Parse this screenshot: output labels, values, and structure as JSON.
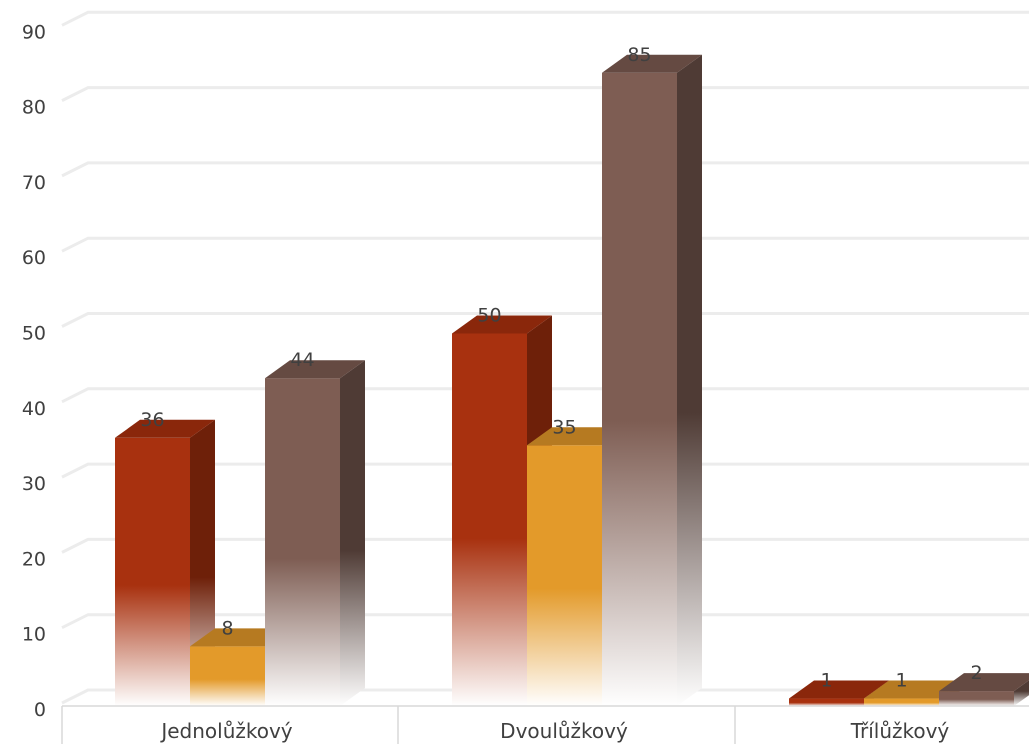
{
  "chart_data": {
    "type": "bar",
    "title": "",
    "xlabel": "",
    "ylabel": "",
    "categories": [
      "Jednolůžkový",
      "Dvoulůžkový",
      "Třílůžkový"
    ],
    "series": [
      {
        "values": [
          36,
          50,
          1
        ],
        "color": "#a8310f",
        "side_color": "#6e2009",
        "top_color": "#8a270b"
      },
      {
        "values": [
          8,
          35,
          1
        ],
        "color": "#e39a2a",
        "side_color": "#9c6a1d",
        "top_color": "#b67a21"
      },
      {
        "values": [
          44,
          85,
          2
        ],
        "color": "#7e5d53",
        "side_color": "#4f3b35",
        "top_color": "#654a42"
      }
    ],
    "ylim": [
      0,
      90
    ],
    "yticks": [
      "0",
      "10",
      "20",
      "30",
      "40",
      "50",
      "60",
      "70",
      "80",
      "90"
    ],
    "data_labels": [
      [
        "36",
        "50",
        "1"
      ],
      [
        "8",
        "35",
        "1"
      ],
      [
        "44",
        "85",
        "2"
      ]
    ],
    "grid": true,
    "legend": "none",
    "style": "3d-clustered-column"
  }
}
